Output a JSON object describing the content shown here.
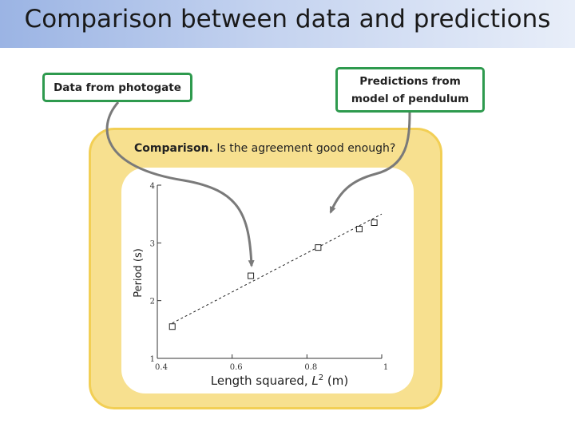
{
  "title": "Comparison between data and predictions",
  "callouts": {
    "data_label": "Data from photogate",
    "prediction_line1": "Predictions from",
    "prediction_line2": "model of pendulum"
  },
  "comparison": {
    "bold": "Comparison.",
    "text": " Is the agreement good enough?"
  },
  "colors": {
    "frame_fill": "#f7e08f",
    "frame_border": "#f2cf55",
    "callout_border": "#2e9a4e",
    "arrow": "#7a7a7a"
  },
  "chart_data": {
    "type": "scatter",
    "xlabel": "Length squared, L² (m)",
    "ylabel": "Period (s)",
    "xlim": [
      0.4,
      1.0
    ],
    "ylim": [
      1,
      4
    ],
    "x_ticks": [
      "0.4",
      "0.6",
      "0.8",
      "1"
    ],
    "y_ticks": [
      "1",
      "2",
      "3",
      "4"
    ],
    "points": [
      {
        "x": 0.44,
        "y": 1.55
      },
      {
        "x": 0.65,
        "y": 2.43
      },
      {
        "x": 0.83,
        "y": 2.92
      },
      {
        "x": 0.94,
        "y": 3.24
      },
      {
        "x": 0.98,
        "y": 3.35
      }
    ],
    "fit_line": [
      {
        "x": 0.44,
        "y": 1.61
      },
      {
        "x": 1.0,
        "y": 3.5
      }
    ]
  }
}
